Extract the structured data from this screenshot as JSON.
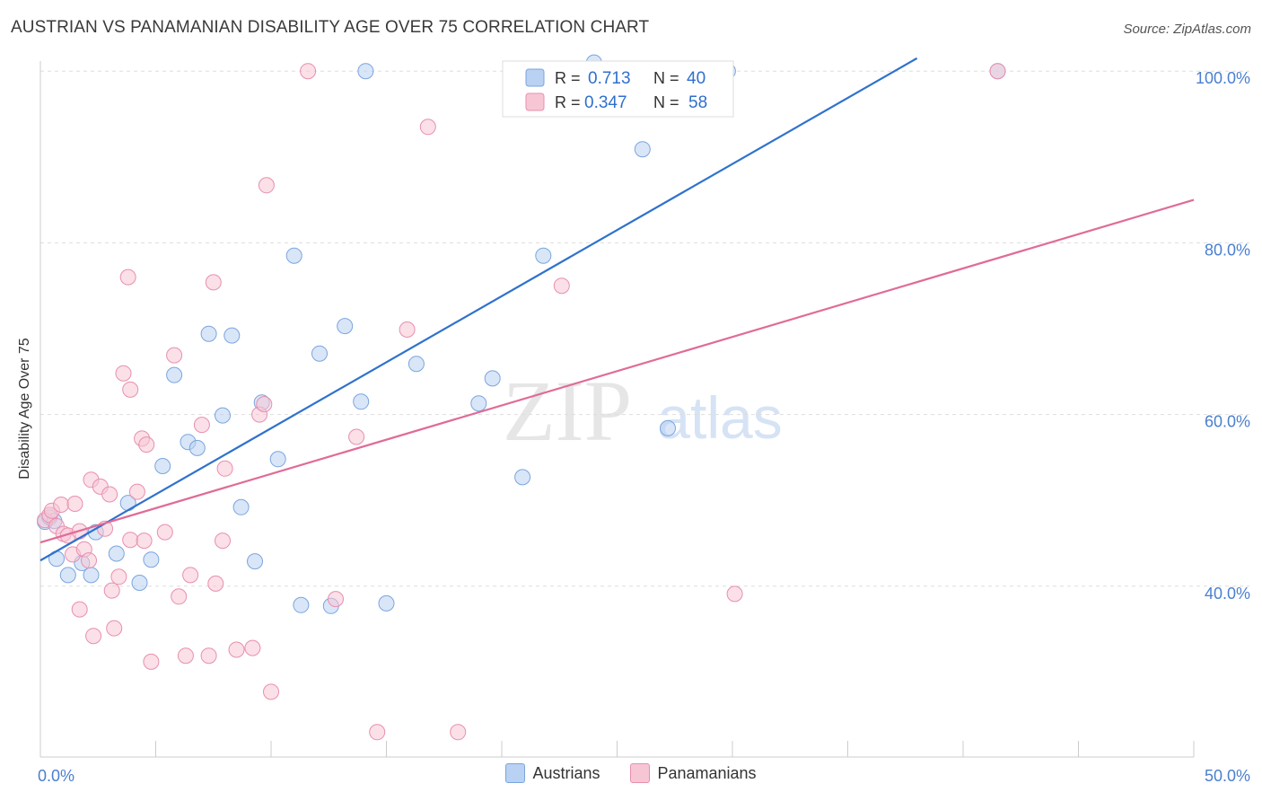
{
  "header": {
    "title": "AUSTRIAN VS PANAMANIAN DISABILITY AGE OVER 75 CORRELATION CHART",
    "source": "Source: ZipAtlas.com"
  },
  "watermark": {
    "zip": "ZIP",
    "atlas": "atlas"
  },
  "colors": {
    "blue_fill": "#b9d1f2",
    "blue_stroke": "#7aa5de",
    "blue_line": "#2f72cc",
    "pink_fill": "#f7c6d5",
    "pink_stroke": "#e88fae",
    "pink_line": "#e06b97",
    "axis_text": "#4a7fcf",
    "grid": "#dddddd"
  },
  "chart_data": {
    "type": "scatter",
    "xlabel": "",
    "ylabel": "Disability Age Over 75",
    "xlim": [
      0,
      50
    ],
    "ylim": [
      20,
      102
    ],
    "x_tick_labels": [
      {
        "value": 0,
        "label": "0.0%"
      },
      {
        "value": 50,
        "label": "50.0%"
      }
    ],
    "y_tick_labels": [
      {
        "value": 40,
        "label": "40.0%"
      },
      {
        "value": 60,
        "label": "60.0%"
      },
      {
        "value": 80,
        "label": "80.0%"
      },
      {
        "value": 100,
        "label": "100.0%"
      }
    ],
    "legend": [
      {
        "series": "Austrians",
        "r_label": "R =",
        "r": "0.713",
        "n_label": "N =",
        "n": "40"
      },
      {
        "series": "Panamanians",
        "r_label": "R =",
        "r": "0.347",
        "n_label": "N =",
        "n": "58"
      }
    ],
    "series": [
      {
        "name": "Austrians",
        "color": "blue",
        "trend": {
          "x0": 0,
          "y0": 43,
          "x1": 38,
          "y1": 101.5
        },
        "points": [
          [
            0.2,
            47.5
          ],
          [
            0.4,
            48.0
          ],
          [
            0.6,
            47.6
          ],
          [
            0.7,
            43.2
          ],
          [
            1.2,
            41.3
          ],
          [
            1.8,
            42.7
          ],
          [
            2.2,
            41.3
          ],
          [
            2.4,
            46.3
          ],
          [
            3.3,
            43.8
          ],
          [
            3.8,
            49.7
          ],
          [
            4.3,
            40.4
          ],
          [
            4.8,
            43.1
          ],
          [
            5.3,
            54.0
          ],
          [
            5.8,
            64.6
          ],
          [
            6.4,
            56.8
          ],
          [
            6.8,
            56.1
          ],
          [
            7.3,
            69.4
          ],
          [
            7.9,
            59.9
          ],
          [
            8.3,
            69.2
          ],
          [
            8.7,
            49.2
          ],
          [
            9.3,
            42.9
          ],
          [
            9.6,
            61.4
          ],
          [
            10.3,
            54.8
          ],
          [
            11.0,
            78.5
          ],
          [
            11.3,
            37.8
          ],
          [
            12.1,
            67.1
          ],
          [
            12.6,
            37.7
          ],
          [
            13.2,
            70.3
          ],
          [
            13.9,
            61.5
          ],
          [
            14.1,
            100.0
          ],
          [
            15.0,
            38.0
          ],
          [
            16.3,
            65.9
          ],
          [
            19.0,
            61.3
          ],
          [
            19.6,
            64.2
          ],
          [
            20.9,
            52.7
          ],
          [
            21.8,
            78.5
          ],
          [
            24.0,
            101.0
          ],
          [
            26.1,
            90.9
          ],
          [
            27.2,
            58.4
          ],
          [
            29.8,
            100.0
          ],
          [
            41.5,
            100.0
          ]
        ]
      },
      {
        "name": "Panamanians",
        "color": "pink",
        "trend": {
          "x0": 0,
          "y0": 45.1,
          "x1": 50,
          "y1": 85.0
        },
        "points": [
          [
            0.2,
            47.7
          ],
          [
            0.4,
            48.3
          ],
          [
            0.5,
            48.8
          ],
          [
            0.7,
            47.0
          ],
          [
            0.9,
            49.5
          ],
          [
            1.0,
            46.1
          ],
          [
            1.2,
            45.9
          ],
          [
            1.4,
            43.7
          ],
          [
            1.5,
            49.6
          ],
          [
            1.7,
            46.4
          ],
          [
            1.7,
            37.3
          ],
          [
            1.9,
            44.3
          ],
          [
            2.1,
            43.0
          ],
          [
            2.2,
            52.4
          ],
          [
            2.3,
            34.2
          ],
          [
            2.6,
            51.6
          ],
          [
            2.8,
            46.7
          ],
          [
            3.0,
            50.7
          ],
          [
            3.1,
            39.5
          ],
          [
            3.2,
            35.1
          ],
          [
            3.4,
            41.1
          ],
          [
            3.6,
            64.8
          ],
          [
            3.8,
            76.0
          ],
          [
            3.9,
            62.9
          ],
          [
            3.9,
            45.4
          ],
          [
            4.2,
            51.0
          ],
          [
            4.4,
            57.2
          ],
          [
            4.5,
            45.3
          ],
          [
            4.6,
            56.5
          ],
          [
            4.8,
            31.2
          ],
          [
            5.4,
            46.3
          ],
          [
            5.8,
            66.9
          ],
          [
            6.0,
            38.8
          ],
          [
            6.3,
            31.9
          ],
          [
            6.5,
            41.3
          ],
          [
            7.0,
            58.8
          ],
          [
            7.3,
            31.9
          ],
          [
            7.5,
            75.4
          ],
          [
            7.6,
            40.3
          ],
          [
            7.9,
            45.3
          ],
          [
            8.0,
            53.7
          ],
          [
            8.5,
            32.6
          ],
          [
            9.2,
            32.8
          ],
          [
            9.5,
            60.0
          ],
          [
            9.7,
            61.2
          ],
          [
            9.8,
            86.7
          ],
          [
            10.0,
            27.7
          ],
          [
            11.6,
            100.0
          ],
          [
            12.8,
            38.5
          ],
          [
            13.7,
            57.4
          ],
          [
            14.6,
            23.0
          ],
          [
            15.9,
            69.9
          ],
          [
            16.8,
            93.5
          ],
          [
            18.1,
            23.0
          ],
          [
            22.6,
            75.0
          ],
          [
            30.1,
            39.1
          ],
          [
            41.5,
            100.0
          ]
        ]
      }
    ]
  }
}
